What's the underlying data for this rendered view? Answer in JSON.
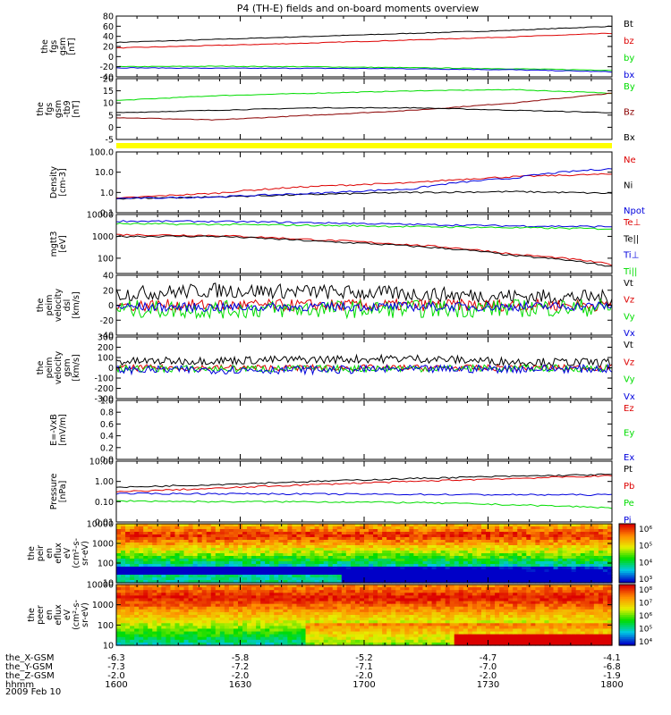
{
  "title": "P4 (TH-E) fields and on-board moments overview",
  "date": "2009 Feb 10",
  "time_axis": {
    "start_hhmm": "1600",
    "end_hhmm": "1800",
    "ephemeris": [
      {
        "label": "the_X-GSM",
        "values": [
          "-6.3",
          "-5.8",
          "-5.2",
          "-4.7",
          "-4.1"
        ]
      },
      {
        "label": "the_Y-GSM",
        "values": [
          "-7.3",
          "-7.2",
          "-7.1",
          "-7.0",
          "-6.8"
        ]
      },
      {
        "label": "the_Z-GSM",
        "values": [
          "-2.0",
          "-2.0",
          "-2.0",
          "-2.0",
          "-1.9"
        ]
      },
      {
        "label": "hhmm",
        "values": [
          "1600",
          "1630",
          "1700",
          "1730",
          "1800"
        ]
      }
    ]
  },
  "colors": {
    "black": "#000000",
    "red": "#dd0000",
    "green": "#00dd00",
    "blue": "#0000dd",
    "yellow": "#ffff00",
    "brown": "#8b0000"
  },
  "chart_data": [
    {
      "id": "fgs",
      "type": "line",
      "ylabel": [
        "the",
        "fgs",
        "gsm",
        "[nT]"
      ],
      "ylim": [
        -40,
        80
      ],
      "ticks": [
        "80",
        "60",
        "40",
        "20",
        "0",
        "-20",
        "-40"
      ],
      "tick_values": [
        80,
        60,
        40,
        20,
        0,
        -20,
        -40
      ],
      "series": [
        {
          "name": "Bt",
          "color": "black",
          "values": [
            28,
            34,
            40,
            46,
            52,
            60
          ]
        },
        {
          "name": "bz",
          "color": "red",
          "values": [
            17,
            22,
            27,
            33,
            39,
            46
          ]
        },
        {
          "name": "by",
          "color": "green",
          "values": [
            -20,
            -19,
            -20,
            -22,
            -24,
            -27
          ]
        },
        {
          "name": "bx",
          "color": "blue",
          "values": [
            -22,
            -23,
            -23,
            -24,
            -26,
            -30
          ]
        }
      ]
    },
    {
      "id": "fgs2",
      "type": "line",
      "ylabel": [
        "the",
        "fgs",
        "gsm",
        "-tb9",
        "[nT]"
      ],
      "ylim": [
        -5,
        20
      ],
      "ticks": [
        "20",
        "15",
        "10",
        "5",
        "0",
        "-5"
      ],
      "tick_values": [
        20,
        15,
        10,
        5,
        0,
        -5
      ],
      "series": [
        {
          "name": "By",
          "color": "green",
          "values": [
            11,
            13,
            14,
            15,
            15.5,
            14
          ]
        },
        {
          "name": "Bz",
          "color": "brown",
          "values": [
            4,
            3,
            5,
            7,
            10,
            14
          ]
        },
        {
          "name": "Bx",
          "color": "black",
          "values": [
            6,
            7,
            8,
            8,
            7,
            6
          ]
        }
      ]
    },
    {
      "id": "density",
      "type": "line",
      "log": true,
      "ylabel": [
        "Density",
        "[cm-3]"
      ],
      "ylim": [
        0.1,
        100
      ],
      "ticks": [
        "100.0",
        "10.0",
        "1.0",
        "0.1"
      ],
      "tick_values": [
        100,
        10,
        1,
        0.1
      ],
      "series": [
        {
          "name": "Ne",
          "color": "red",
          "values": [
            0.5,
            0.9,
            2,
            3,
            6,
            8
          ]
        },
        {
          "name": "Ni",
          "color": "black",
          "values": [
            0.5,
            0.6,
            0.8,
            1,
            1.1,
            0.9
          ]
        },
        {
          "name": "Npot",
          "color": "blue",
          "values": [
            0.5,
            0.6,
            0.9,
            1.5,
            5,
            15
          ]
        }
      ]
    },
    {
      "id": "temp",
      "type": "line",
      "log": true,
      "ylabel": [
        "mgtt3",
        "[eV]"
      ],
      "ylim": [
        20,
        10000
      ],
      "ticks": [
        "10000",
        "1000",
        "100"
      ],
      "tick_values": [
        10000,
        1000,
        100
      ],
      "series": [
        {
          "name": "Te⊥",
          "color": "red",
          "values": [
            1200,
            1100,
            700,
            400,
            150,
            50
          ]
        },
        {
          "name": "Te||",
          "color": "black",
          "values": [
            1000,
            1000,
            600,
            350,
            130,
            40
          ]
        },
        {
          "name": "Ti⊥",
          "color": "blue",
          "values": [
            5000,
            4800,
            4200,
            3500,
            3000,
            2800
          ]
        },
        {
          "name": "Ti||",
          "color": "green",
          "values": [
            3800,
            3500,
            3200,
            2800,
            2500,
            2200
          ]
        }
      ]
    },
    {
      "id": "vel1",
      "type": "line",
      "ylabel": [
        "the",
        "peim",
        "velocity",
        "dsl",
        "[km/s]"
      ],
      "ylim": [
        -40,
        40
      ],
      "ticks": [
        "40",
        "20",
        "0",
        "-20",
        "-40"
      ],
      "tick_values": [
        40,
        20,
        0,
        -20,
        -40
      ],
      "series": [
        {
          "name": "Vt",
          "color": "black",
          "values": [
            15,
            20,
            18,
            15,
            12,
            10
          ]
        },
        {
          "name": "Vz",
          "color": "red",
          "values": [
            0,
            0,
            0,
            0,
            0,
            0
          ]
        },
        {
          "name": "Vy",
          "color": "green",
          "values": [
            -5,
            -6,
            -5,
            -5,
            -4,
            -3
          ]
        },
        {
          "name": "Vx",
          "color": "blue",
          "values": [
            -2,
            -3,
            -2,
            -2,
            -2,
            -1
          ]
        }
      ]
    },
    {
      "id": "vel2",
      "type": "line",
      "ylabel": [
        "the",
        "peim",
        "velocity",
        "gsm",
        "[km/s]"
      ],
      "ylim": [
        -300,
        300
      ],
      "ticks": [
        "300",
        "200",
        "100",
        "0",
        "-100",
        "-200",
        "-300"
      ],
      "tick_values": [
        300,
        200,
        100,
        0,
        -100,
        -200,
        -300
      ],
      "series": [
        {
          "name": "Vt",
          "color": "black",
          "values": [
            60,
            70,
            80,
            90,
            60,
            50
          ]
        },
        {
          "name": "Vz",
          "color": "red",
          "values": [
            0,
            0,
            0,
            0,
            0,
            0
          ]
        },
        {
          "name": "Vy",
          "color": "green",
          "values": [
            -10,
            -10,
            -10,
            -5,
            -5,
            -5
          ]
        },
        {
          "name": "Vx",
          "color": "blue",
          "values": [
            -20,
            -20,
            -20,
            -15,
            -10,
            -10
          ]
        }
      ]
    },
    {
      "id": "efield",
      "type": "line",
      "ylabel": [
        "E=-VxB",
        "[mV/m]"
      ],
      "ylim": [
        0,
        1
      ],
      "ticks": [
        "1.0",
        "0.8",
        "0.6",
        "0.4",
        "0.2",
        "0.0"
      ],
      "tick_values": [
        1,
        0.8,
        0.6,
        0.4,
        0.2,
        0
      ],
      "series": [
        {
          "name": "Ez",
          "color": "red",
          "values": []
        },
        {
          "name": "Ey",
          "color": "green",
          "values": []
        },
        {
          "name": "Ex",
          "color": "blue",
          "values": []
        }
      ]
    },
    {
      "id": "pressure",
      "type": "line",
      "log": true,
      "ylabel": [
        "Pressure",
        "[nPa]"
      ],
      "ylim": [
        0.01,
        10
      ],
      "ticks": [
        "10.00",
        "1.00",
        "0.10",
        "0.01"
      ],
      "tick_values": [
        10,
        1,
        0.1,
        0.01
      ],
      "series": [
        {
          "name": "Pt",
          "color": "black",
          "values": [
            0.5,
            0.7,
            1.0,
            1.4,
            1.8,
            2.2
          ]
        },
        {
          "name": "Pb",
          "color": "red",
          "values": [
            0.3,
            0.45,
            0.7,
            1.0,
            1.4,
            1.9
          ]
        },
        {
          "name": "Pe",
          "color": "green",
          "values": [
            0.11,
            0.1,
            0.1,
            0.09,
            0.07,
            0.05
          ]
        },
        {
          "name": "Pi",
          "color": "blue",
          "values": [
            0.25,
            0.25,
            0.24,
            0.23,
            0.22,
            0.22
          ]
        }
      ]
    },
    {
      "id": "ion_spec",
      "type": "heatmap",
      "log": true,
      "ylabel": [
        "the",
        "peir",
        "en",
        "eflux",
        "eV",
        "(cm²-s-",
        "sr-eV)"
      ],
      "ylim": [
        10,
        10000
      ],
      "ticks": [
        "10000",
        "1000",
        "100",
        "10"
      ],
      "tick_values": [
        10000,
        1000,
        100,
        10
      ],
      "colorbar": {
        "ticks": [
          "10⁶",
          "10⁵",
          "10⁴",
          "10³"
        ],
        "range": [
          2.5,
          6.5
        ]
      }
    },
    {
      "id": "elec_spec",
      "type": "heatmap",
      "log": true,
      "ylabel": [
        "the",
        "peer",
        "en",
        "eflux",
        "eV",
        "(cm²-s-",
        "sr-eV)"
      ],
      "ylim": [
        10,
        10000
      ],
      "ticks": [
        "10000",
        "1000",
        "100",
        "10"
      ],
      "tick_values": [
        10000,
        1000,
        100,
        10
      ],
      "colorbar": {
        "ticks": [
          "10⁸",
          "10⁷",
          "10⁶",
          "10⁵",
          "10⁴"
        ],
        "range": [
          3.5,
          8.2
        ]
      }
    }
  ]
}
